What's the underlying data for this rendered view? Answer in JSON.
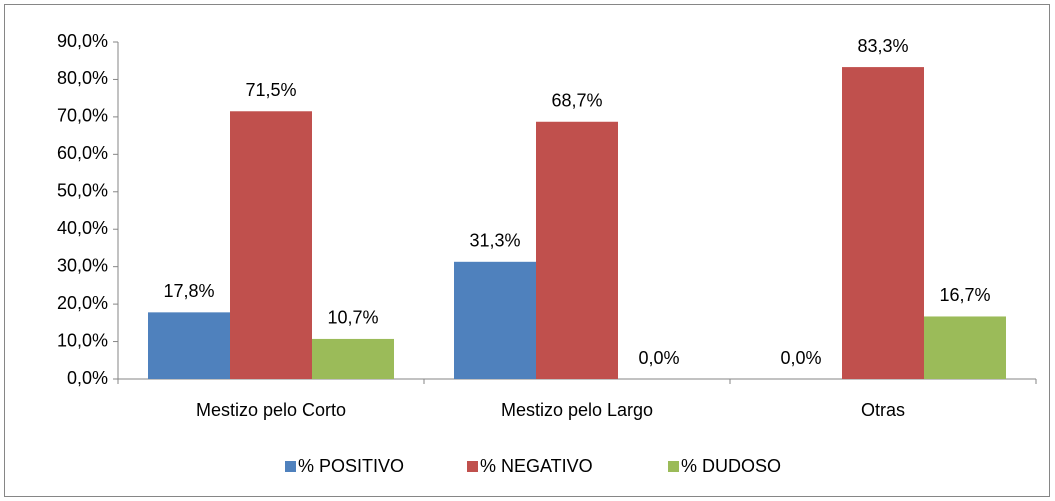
{
  "chart_data": {
    "type": "bar",
    "categories": [
      "Mestizo pelo Corto",
      "Mestizo pelo Largo",
      "Otras"
    ],
    "series": [
      {
        "name": "% POSITIVO",
        "color": "#4f81bd",
        "values": [
          17.8,
          31.3,
          0.0
        ],
        "value_labels": [
          "17,8%",
          "31,3%",
          "0,0%"
        ]
      },
      {
        "name": "% NEGATIVO",
        "color": "#c0504d",
        "values": [
          71.5,
          68.7,
          83.3
        ],
        "value_labels": [
          "71,5%",
          "68,7%",
          "83,3%"
        ]
      },
      {
        "name": "% DUDOSO",
        "color": "#9bbb59",
        "values": [
          10.7,
          0.0,
          16.7
        ],
        "value_labels": [
          "10,7%",
          "0,0%",
          "16,7%"
        ]
      }
    ],
    "ylim": [
      0,
      90
    ],
    "yticks": [
      {
        "value": 0,
        "label": "0,0%"
      },
      {
        "value": 10,
        "label": "10,0%"
      },
      {
        "value": 20,
        "label": "20,0%"
      },
      {
        "value": 30,
        "label": "30,0%"
      },
      {
        "value": 40,
        "label": "40,0%"
      },
      {
        "value": 50,
        "label": "50,0%"
      },
      {
        "value": 60,
        "label": "60,0%"
      },
      {
        "value": 70,
        "label": "70,0%"
      },
      {
        "value": 80,
        "label": "80,0%"
      },
      {
        "value": 90,
        "label": "90,0%"
      }
    ],
    "grid": false,
    "legend": "bottom"
  }
}
